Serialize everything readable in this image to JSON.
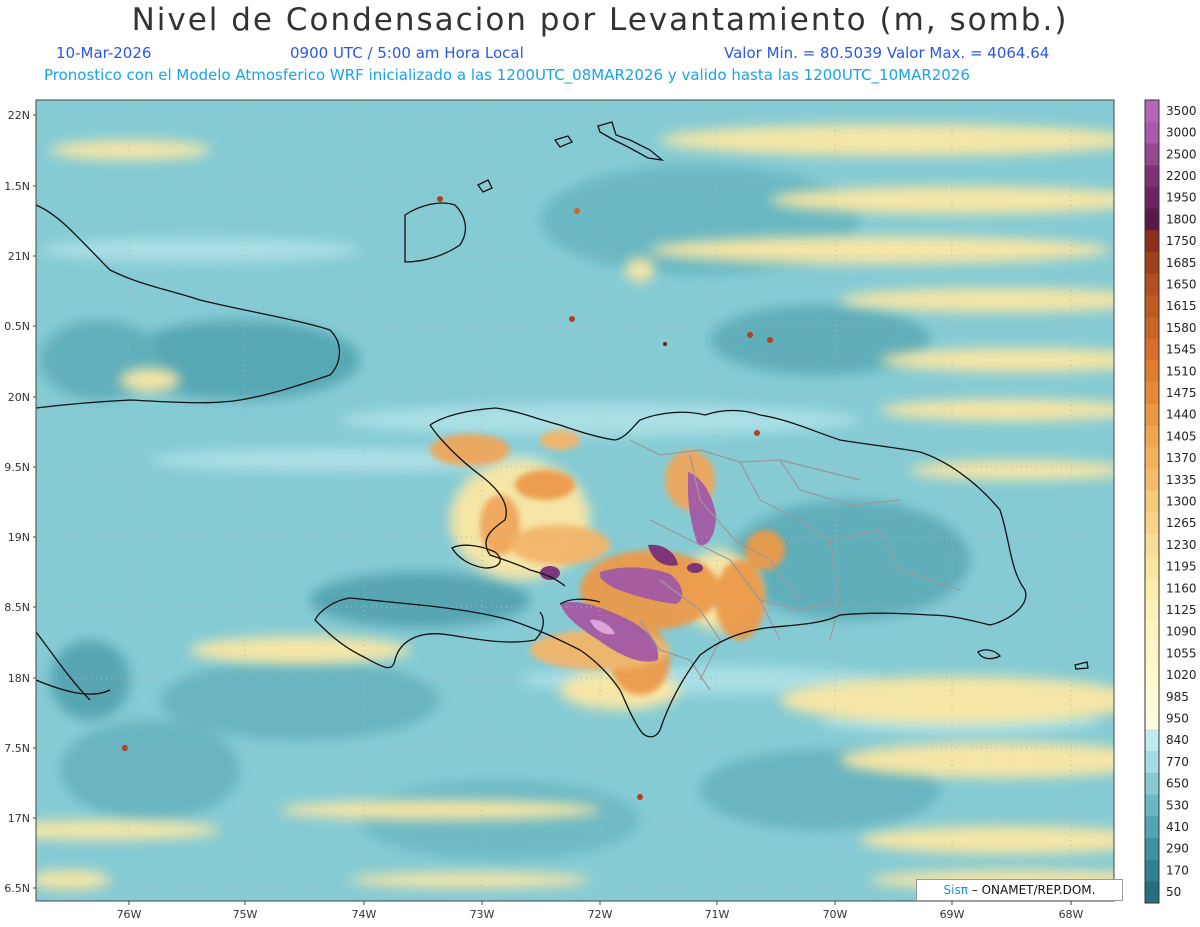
{
  "header": {
    "title": "Nivel de Condensacion por Levantamiento (m, somb.)",
    "date": "10-Mar-2026",
    "time": "0900 UTC / 5:00 am Hora Local",
    "range": "Valor Min. = 80.5039   Valor Max. = 4064.64",
    "forecast": "Pronostico con el Modelo Atmosferico WRF inicializado a las 1200UTC_08MAR2026 y valido hasta las  1200UTC_10MAR2026"
  },
  "axes": {
    "lon_labels": [
      "76W",
      "75W",
      "74W",
      "73W",
      "72W",
      "71W",
      "70W",
      "69W",
      "68W"
    ],
    "lat_labels": [
      "22N",
      "1.5N",
      "21N",
      "0.5N",
      "20N",
      "9.5N",
      "19N",
      "8.5N",
      "18N",
      "7.5N",
      "17N",
      "6.5N"
    ]
  },
  "colorbar": {
    "labels": [
      "3500",
      "3000",
      "2500",
      "2200",
      "1950",
      "1800",
      "1750",
      "1685",
      "1650",
      "1615",
      "1580",
      "1545",
      "1510",
      "1475",
      "1440",
      "1405",
      "1370",
      "1335",
      "1300",
      "1265",
      "1230",
      "1195",
      "1160",
      "1125",
      "1090",
      "1055",
      "1020",
      "985",
      "950",
      "840",
      "770",
      "650",
      "530",
      "410",
      "290",
      "170",
      "50"
    ],
    "colors": [
      "#b565b8",
      "#a95aaa",
      "#93488f",
      "#7e3578",
      "#6b2561",
      "#5a1846",
      "#8a2f1a",
      "#a1401c",
      "#b24e1f",
      "#c05a22",
      "#cb6526",
      "#d6702b",
      "#e07d31",
      "#e78a38",
      "#ec9843",
      "#f0a54f",
      "#f3b15d",
      "#f5bd6b",
      "#f7c97a",
      "#f9d488",
      "#fadd95",
      "#fbe5a1",
      "#fcecac",
      "#fdf1b7",
      "#fdf4c0",
      "#fef6c8",
      "#fef8cf",
      "#fef9d6",
      "#fefadd",
      "#bfeaf0",
      "#a3dde3",
      "#86cbd4",
      "#6ab8c4",
      "#51a4b2",
      "#3e92a1",
      "#2f8190",
      "#236f80"
    ]
  },
  "credit": {
    "brand": "Sisπ",
    "org": "– ONAMET/REP.DOM."
  },
  "colors": {
    "sea_base": "#7fc6cf",
    "yellow_band": "#fbe9a8",
    "orange": "#e89c4a",
    "purple": "#a35aa5",
    "coast": "#111111",
    "border": "#999999"
  }
}
